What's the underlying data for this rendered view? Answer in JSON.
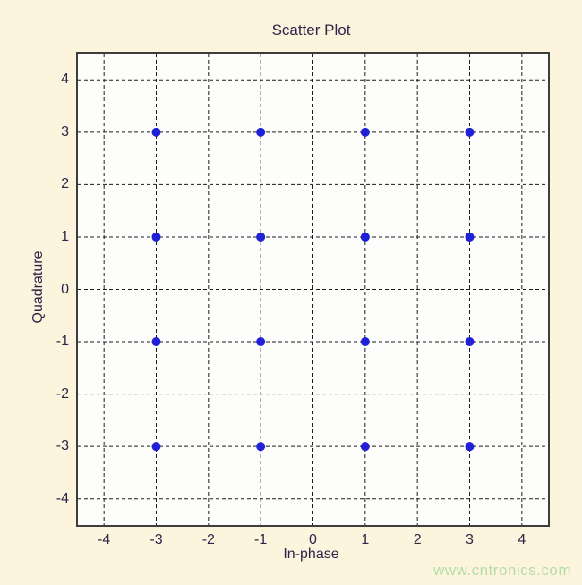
{
  "page": {
    "background_color": "#fcf4dd",
    "plot_background_color": "#fdfdfb",
    "frame_color": "#3d3d3d",
    "grid_color": "#1c1c1c",
    "text_color": "#302448",
    "watermark": "www.cntronics.com",
    "watermark_color": "#b5dda8"
  },
  "chart_data": {
    "type": "scatter",
    "title": "Scatter Plot",
    "xlabel": "In-phase",
    "ylabel": "Quadrature",
    "xlim": [
      -4.5,
      4.5
    ],
    "ylim": [
      -4.5,
      4.5
    ],
    "xticks": [
      -4,
      -3,
      -2,
      -1,
      0,
      1,
      2,
      3,
      4
    ],
    "yticks": [
      -4,
      -3,
      -2,
      -1,
      0,
      1,
      2,
      3,
      4
    ],
    "grid": "dashed",
    "legend": "none",
    "marker": "circle",
    "marker_size_px": 9,
    "marker_color": "#2020d6",
    "points": [
      [
        -3,
        3
      ],
      [
        -1,
        3
      ],
      [
        1,
        3
      ],
      [
        3,
        3
      ],
      [
        -3,
        1
      ],
      [
        -1,
        1
      ],
      [
        1,
        1
      ],
      [
        3,
        1
      ],
      [
        -3,
        -1
      ],
      [
        -1,
        -1
      ],
      [
        1,
        -1
      ],
      [
        3,
        -1
      ],
      [
        -3,
        -3
      ],
      [
        -1,
        -3
      ],
      [
        1,
        -3
      ],
      [
        3,
        -3
      ]
    ]
  }
}
